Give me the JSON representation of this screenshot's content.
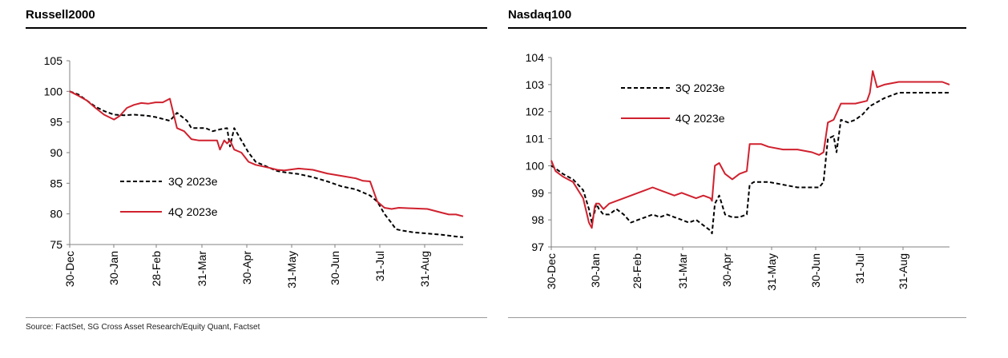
{
  "source": "Source: FactSet, SG Cross Asset Research/Equity Quant, Factset",
  "chart_data": [
    {
      "type": "line",
      "title": "Russell2000",
      "xlabel": "",
      "ylabel": "",
      "ylim": [
        75,
        105
      ],
      "yticks": [
        75,
        80,
        85,
        90,
        95,
        100,
        105
      ],
      "xticks": [
        "30-Dec",
        "30-Jan",
        "28-Feb",
        "31-Mar",
        "30-Apr",
        "31-May",
        "30-Jun",
        "31-Jul",
        "31-Aug"
      ],
      "xlim": [
        0,
        275
      ],
      "legend_position": "lower-left",
      "grid": false,
      "series": [
        {
          "name": "3Q 2023e",
          "style": "dashed",
          "color": "#000000",
          "x": [
            0,
            6,
            12,
            18,
            24,
            31,
            38,
            45,
            50,
            55,
            60,
            65,
            70,
            75,
            82,
            85,
            90,
            95,
            100,
            105,
            110,
            112,
            115,
            120,
            125,
            130,
            140,
            145,
            150,
            160,
            170,
            180,
            190,
            200,
            205,
            210,
            215,
            220,
            225,
            228,
            232,
            240,
            250,
            260,
            270,
            275
          ],
          "values": [
            100,
            99.5,
            98.5,
            97.5,
            96.8,
            96.2,
            96.1,
            96.2,
            96.1,
            96,
            95.8,
            95.5,
            95.2,
            96.5,
            95.2,
            94,
            94,
            94,
            93.5,
            93.8,
            94,
            91,
            94,
            92,
            90,
            88.5,
            87.5,
            87,
            86.8,
            86.5,
            86,
            85.3,
            84.5,
            84,
            83.5,
            83,
            82,
            80,
            78.5,
            77.5,
            77.3,
            77,
            76.8,
            76.6,
            76.3,
            76.2
          ]
        },
        {
          "name": "4Q 2023e",
          "style": "solid",
          "color": "#d0212e",
          "x": [
            0,
            6,
            12,
            18,
            24,
            31,
            35,
            40,
            45,
            50,
            55,
            60,
            65,
            70,
            75,
            80,
            85,
            90,
            95,
            100,
            103,
            105,
            108,
            110,
            112,
            115,
            120,
            125,
            130,
            140,
            145,
            150,
            160,
            170,
            180,
            190,
            200,
            205,
            210,
            215,
            220,
            225,
            230,
            240,
            250,
            260,
            265,
            270,
            275
          ],
          "values": [
            100,
            99.3,
            98.5,
            97.3,
            96.2,
            95.4,
            96,
            97.3,
            97.8,
            98.1,
            98,
            98.2,
            98.2,
            98.8,
            94,
            93.5,
            92.2,
            92,
            92,
            92,
            92,
            90.5,
            92,
            91.5,
            92,
            90.5,
            90,
            88.5,
            88,
            87.5,
            87.2,
            87.1,
            87.4,
            87.2,
            86.6,
            86.2,
            85.8,
            85.4,
            85.3,
            82,
            81,
            80.8,
            81,
            80.9,
            80.8,
            80.2,
            79.9,
            79.9,
            79.6
          ]
        }
      ]
    },
    {
      "type": "line",
      "title": "Nasdaq100",
      "xlabel": "",
      "ylabel": "",
      "ylim": [
        97,
        104
      ],
      "yticks": [
        97,
        98,
        99,
        100,
        101,
        102,
        103,
        104
      ],
      "xticks": [
        "30-Dec",
        "30-Jan",
        "28-Feb",
        "31-Mar",
        "30-Apr",
        "31-May",
        "30-Jun",
        "31-Jul",
        "31-Aug"
      ],
      "xlim": [
        0,
        275
      ],
      "legend_position": "upper-left",
      "grid": false,
      "series": [
        {
          "name": "3Q 2023e",
          "style": "dashed",
          "color": "#000000",
          "x": [
            0,
            3,
            8,
            15,
            22,
            26,
            28,
            30,
            31,
            33,
            36,
            40,
            45,
            50,
            55,
            60,
            65,
            70,
            75,
            80,
            85,
            90,
            95,
            100,
            105,
            110,
            111,
            113,
            116,
            120,
            125,
            130,
            135,
            137,
            140,
            145,
            150,
            160,
            170,
            180,
            185,
            188,
            191,
            195,
            197,
            200,
            205,
            210,
            215,
            220,
            230,
            240,
            250,
            260,
            275
          ],
          "values": [
            100,
            99.9,
            99.7,
            99.5,
            99.1,
            98.4,
            97.9,
            98.3,
            98.6,
            98.4,
            98.2,
            98.2,
            98.4,
            98.2,
            97.9,
            98,
            98.1,
            98.2,
            98.1,
            98.2,
            98.1,
            98,
            97.9,
            98,
            97.8,
            97.6,
            97.5,
            98.6,
            98.9,
            98.2,
            98.1,
            98.1,
            98.2,
            99.3,
            99.4,
            99.4,
            99.4,
            99.3,
            99.2,
            99.2,
            99.2,
            99.4,
            101,
            101.1,
            100.5,
            101.7,
            101.6,
            101.7,
            101.9,
            102.2,
            102.5,
            102.7,
            102.7,
            102.7,
            102.7
          ]
        },
        {
          "name": "4Q 2023e",
          "style": "solid",
          "color": "#d0212e",
          "x": [
            0,
            3,
            8,
            15,
            22,
            26,
            28,
            30,
            31,
            33,
            36,
            40,
            45,
            50,
            55,
            60,
            65,
            70,
            75,
            80,
            85,
            90,
            95,
            100,
            105,
            110,
            111,
            113,
            116,
            120,
            125,
            130,
            135,
            137,
            140,
            145,
            150,
            160,
            170,
            180,
            185,
            188,
            191,
            195,
            200,
            210,
            218,
            220,
            222,
            225,
            230,
            240,
            250,
            260,
            270,
            275
          ],
          "values": [
            100.2,
            99.8,
            99.6,
            99.4,
            98.8,
            97.9,
            97.7,
            98.5,
            98.6,
            98.6,
            98.4,
            98.6,
            98.7,
            98.8,
            98.9,
            99,
            99.1,
            99.2,
            99.1,
            99,
            98.9,
            99,
            98.9,
            98.8,
            98.9,
            98.8,
            98.7,
            100,
            100.1,
            99.7,
            99.5,
            99.7,
            99.8,
            100.8,
            100.8,
            100.8,
            100.7,
            100.6,
            100.6,
            100.5,
            100.4,
            100.5,
            101.6,
            101.7,
            102.3,
            102.3,
            102.4,
            102.7,
            103.5,
            102.9,
            103,
            103.1,
            103.1,
            103.1,
            103.1,
            103
          ]
        }
      ]
    }
  ]
}
